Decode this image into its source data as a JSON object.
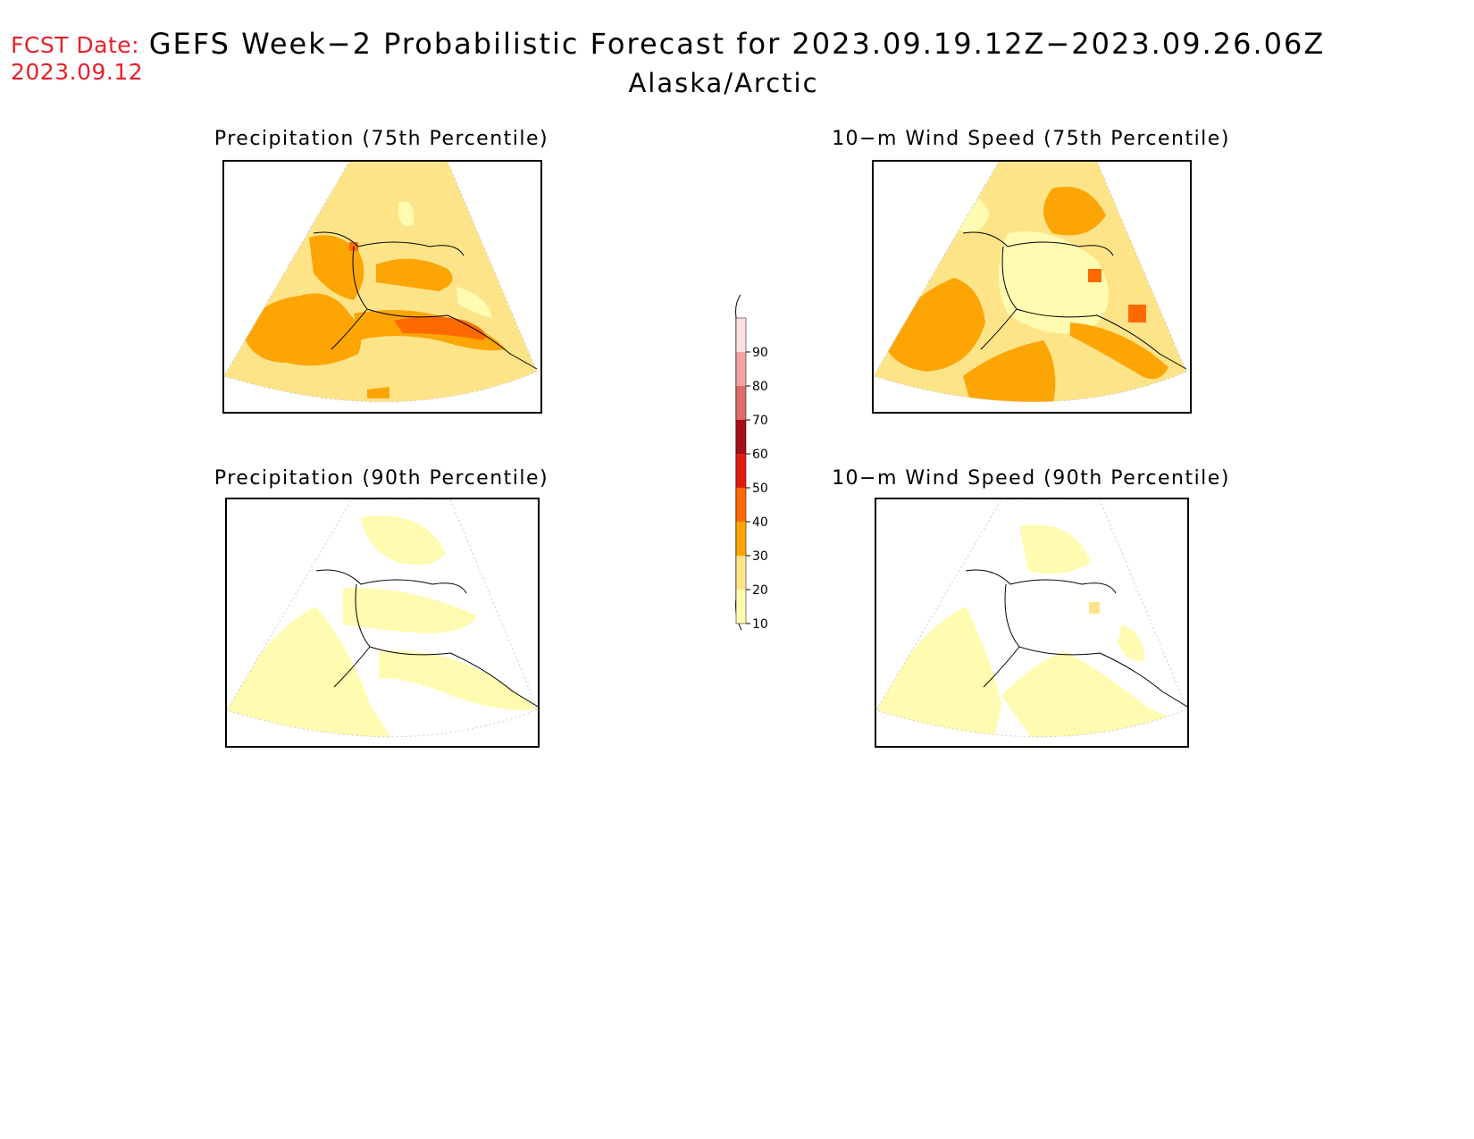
{
  "header": {
    "fcst_line1": "FCST Date:",
    "fcst_line2": "2023.09.12",
    "title": "GEFS Week−2 Probabilistic Forecast for 2023.09.19.12Z−2023.09.26.06Z",
    "region": "Alaska/Arctic"
  },
  "panels": [
    {
      "id": "precip75",
      "title": "Precipitation (75th Percentile)"
    },
    {
      "id": "wind75",
      "title": "10−m Wind Speed (75th Percentile)"
    },
    {
      "id": "precip90",
      "title": "Precipitation (90th Percentile)"
    },
    {
      "id": "wind90",
      "title": "10−m Wind Speed (90th Percentile)"
    }
  ],
  "legend": {
    "levels": [
      "90",
      "80",
      "70",
      "60",
      "50",
      "40",
      "30",
      "20",
      "10"
    ],
    "colors": {
      "10": "#fffbb0",
      "20": "#fee489",
      "30": "#fca505",
      "40": "#ff6a00",
      "50": "#e21b0e",
      "60": "#a50f15",
      "70": "#de6b6b",
      "80": "#f2a2a2",
      "90": "#fde0e0"
    }
  }
}
